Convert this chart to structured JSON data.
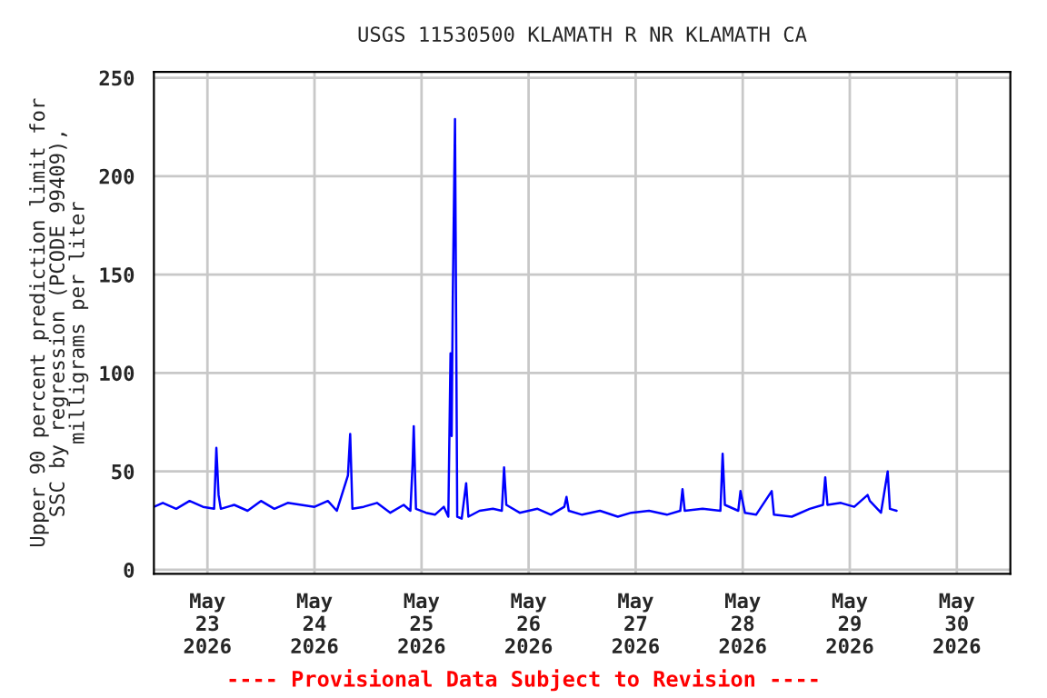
{
  "chart_data": {
    "type": "line",
    "title": "USGS 11530500 KLAMATH R NR KLAMATH CA",
    "ylabel": "Upper 90 percent prediction limit for\nSSC by regression (PCODE 99409),\nmilligrams per liter",
    "annotations": [
      "---- Provisional Data Subject to Revision ----"
    ],
    "series": [
      {
        "color": "#0000ff",
        "x": [
          "2026-05-22T12:00",
          "2026-05-22T14:00",
          "2026-05-22T17:00",
          "2026-05-22T20:00",
          "2026-05-22T23:00",
          "2026-05-23T01:30",
          "2026-05-23T02:00",
          "2026-05-23T02:30",
          "2026-05-23T03:00",
          "2026-05-23T06:00",
          "2026-05-23T09:00",
          "2026-05-23T12:00",
          "2026-05-23T15:00",
          "2026-05-23T18:00",
          "2026-05-23T21:00",
          "2026-05-24T00:00",
          "2026-05-24T03:00",
          "2026-05-24T05:00",
          "2026-05-24T07:30",
          "2026-05-24T08:00",
          "2026-05-24T08:30",
          "2026-05-24T11:00",
          "2026-05-24T14:00",
          "2026-05-24T17:00",
          "2026-05-24T20:00",
          "2026-05-24T21:30",
          "2026-05-24T22:00",
          "2026-05-24T22:15",
          "2026-05-24T22:45",
          "2026-05-25T01:00",
          "2026-05-25T03:00",
          "2026-05-25T05:00",
          "2026-05-25T06:00",
          "2026-05-25T06:30",
          "2026-05-25T06:45",
          "2026-05-25T07:00",
          "2026-05-25T07:30",
          "2026-05-25T07:45",
          "2026-05-25T08:00",
          "2026-05-25T09:00",
          "2026-05-25T10:00",
          "2026-05-25T10:30",
          "2026-05-25T13:00",
          "2026-05-25T16:00",
          "2026-05-25T18:00",
          "2026-05-25T18:30",
          "2026-05-25T19:00",
          "2026-05-25T22:00",
          "2026-05-26T02:00",
          "2026-05-26T05:00",
          "2026-05-26T08:00",
          "2026-05-26T08:30",
          "2026-05-26T09:00",
          "2026-05-26T12:00",
          "2026-05-26T16:00",
          "2026-05-26T20:00",
          "2026-05-26T23:00",
          "2026-05-27T03:00",
          "2026-05-27T07:00",
          "2026-05-27T10:00",
          "2026-05-27T10:30",
          "2026-05-27T11:00",
          "2026-05-27T15:00",
          "2026-05-27T19:00",
          "2026-05-27T19:30",
          "2026-05-27T20:00",
          "2026-05-27T23:00",
          "2026-05-27T23:30",
          "2026-05-28T00:30",
          "2026-05-28T03:00",
          "2026-05-28T06:30",
          "2026-05-28T07:00",
          "2026-05-28T11:00",
          "2026-05-28T15:00",
          "2026-05-28T18:00",
          "2026-05-28T18:30",
          "2026-05-28T19:00",
          "2026-05-28T22:00",
          "2026-05-29T01:00",
          "2026-05-29T04:00",
          "2026-05-29T04:30",
          "2026-05-29T07:00",
          "2026-05-29T08:30",
          "2026-05-29T09:00",
          "2026-05-29T10:30"
        ],
        "values": [
          32,
          34,
          31,
          35,
          32,
          31,
          62,
          38,
          31,
          33,
          30,
          35,
          31,
          34,
          33,
          32,
          35,
          30,
          48,
          69,
          31,
          32,
          34,
          29,
          33,
          30,
          54,
          73,
          31,
          29,
          28,
          32,
          27,
          110,
          68,
          138,
          229,
          128,
          27,
          26,
          44,
          27,
          30,
          31,
          30,
          52,
          33,
          29,
          31,
          28,
          32,
          37,
          30,
          28,
          30,
          27,
          29,
          30,
          28,
          30,
          41,
          30,
          31,
          30,
          59,
          33,
          30,
          40,
          29,
          28,
          40,
          28,
          27,
          31,
          33,
          47,
          33,
          34,
          32,
          38,
          35,
          29,
          50,
          31,
          30
        ]
      }
    ],
    "xlim": [
      "2026-05-22T12:00",
      "2026-05-30T12:00"
    ],
    "xticks": [
      {
        "value": "2026-05-23",
        "label": "May\n23\n2026"
      },
      {
        "value": "2026-05-24",
        "label": "May\n24\n2026"
      },
      {
        "value": "2026-05-25",
        "label": "May\n25\n2026"
      },
      {
        "value": "2026-05-26",
        "label": "May\n26\n2026"
      },
      {
        "value": "2026-05-27",
        "label": "May\n27\n2026"
      },
      {
        "value": "2026-05-28",
        "label": "May\n28\n2026"
      },
      {
        "value": "2026-05-29",
        "label": "May\n29\n2026"
      },
      {
        "value": "2026-05-30",
        "label": "May\n30\n2026"
      }
    ],
    "ylim": [
      -2,
      253
    ],
    "yticks": [
      0,
      50,
      100,
      150,
      200,
      250
    ],
    "grid": true
  }
}
